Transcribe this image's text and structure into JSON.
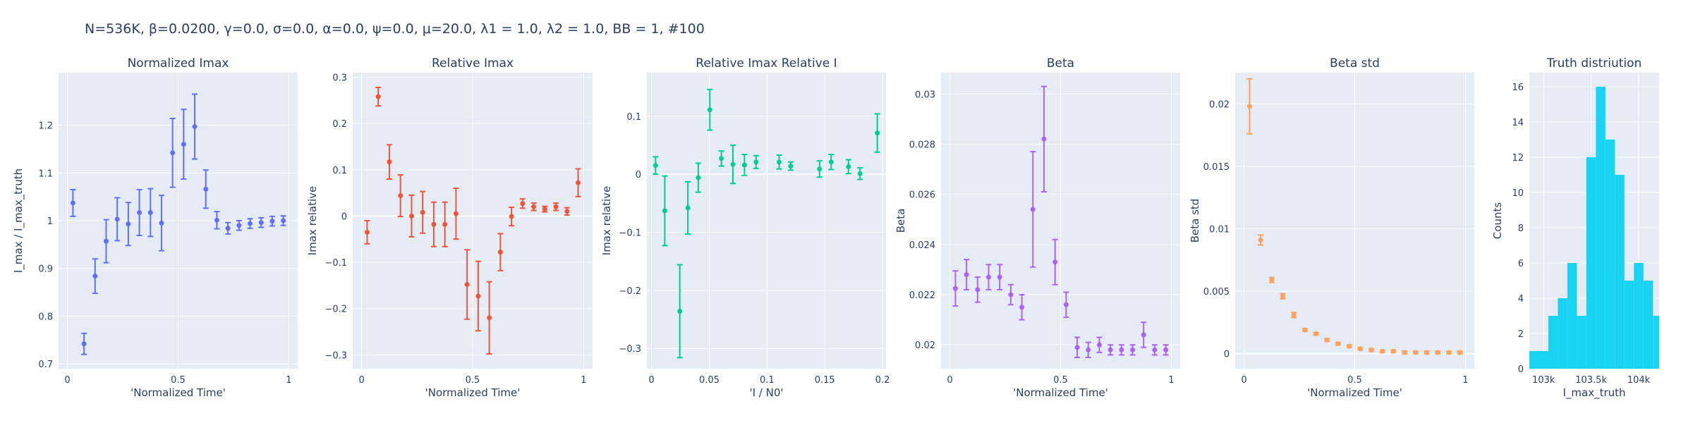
{
  "figure_title": "N=536K, β=0.0200, γ=0.0, σ=0.0,  α=0.0, ψ=0.0, μ=20.0, λ1 = 1.0, λ2 = 1.0, BB = 1, #100",
  "colors": {
    "plot_bg": "#E5ECF6",
    "grid": "#ffffff",
    "text": "#2a3f5f",
    "blue": "#636EFA",
    "red": "#EF553B",
    "green": "#00CC96",
    "purple": "#AB63FA",
    "orange": "#FFA15A",
    "cyan": "#19D3F3"
  },
  "chart_data": [
    {
      "type": "scatter",
      "title": "Normalized Imax",
      "xlabel": "'Normalized Time'",
      "ylabel": "I_max / I_max_truth",
      "xlim": [
        -0.04,
        1.04
      ],
      "ylim": [
        0.69,
        1.31
      ],
      "xticks": [
        0,
        0.5,
        1
      ],
      "xtick_labels": [
        "0",
        "0.5",
        "1"
      ],
      "yticks": [
        0.7,
        0.8,
        0.9,
        1,
        1.1,
        1.2
      ],
      "ytick_labels": [
        "0.7",
        "0.8",
        "0.9",
        "1",
        "1.1",
        "1.2"
      ],
      "color": "#636EFA",
      "x": [
        0.025,
        0.075,
        0.125,
        0.175,
        0.225,
        0.275,
        0.325,
        0.375,
        0.425,
        0.475,
        0.525,
        0.575,
        0.625,
        0.675,
        0.725,
        0.775,
        0.825,
        0.875,
        0.925,
        0.975
      ],
      "y": [
        1.037,
        0.742,
        0.884,
        0.957,
        1.003,
        0.993,
        1.017,
        1.017,
        0.995,
        1.142,
        1.16,
        1.197,
        1.066,
        1.001,
        0.984,
        0.99,
        0.994,
        0.996,
        0.999,
        1.0
      ],
      "err": [
        0.028,
        0.022,
        0.036,
        0.045,
        0.045,
        0.045,
        0.048,
        0.05,
        0.058,
        0.072,
        0.073,
        0.068,
        0.04,
        0.018,
        0.012,
        0.01,
        0.01,
        0.01,
        0.01,
        0.01
      ]
    },
    {
      "type": "scatter",
      "title": "Relative Imax",
      "xlabel": "'Normalized Time'",
      "ylabel": "Imax relative",
      "xlim": [
        -0.04,
        1.04
      ],
      "ylim": [
        -0.33,
        0.31
      ],
      "xticks": [
        0,
        0.5,
        1
      ],
      "xtick_labels": [
        "0",
        "0.5",
        "1"
      ],
      "yticks": [
        -0.3,
        -0.2,
        -0.1,
        0,
        0.1,
        0.2,
        0.3
      ],
      "ytick_labels": [
        "−0.3",
        "−0.2",
        "−0.1",
        "0",
        "0.1",
        "0.2",
        "0.3"
      ],
      "color": "#EF553B",
      "x": [
        0.025,
        0.075,
        0.125,
        0.175,
        0.225,
        0.275,
        0.325,
        0.375,
        0.425,
        0.475,
        0.525,
        0.575,
        0.625,
        0.675,
        0.725,
        0.775,
        0.825,
        0.875,
        0.925,
        0.975
      ],
      "y": [
        -0.035,
        0.258,
        0.117,
        0.044,
        0.0,
        0.008,
        -0.018,
        -0.018,
        0.005,
        -0.148,
        -0.173,
        -0.22,
        -0.078,
        -0.001,
        0.027,
        0.02,
        0.015,
        0.02,
        0.01,
        0.072
      ],
      "err": [
        0.025,
        0.02,
        0.037,
        0.045,
        0.045,
        0.045,
        0.048,
        0.048,
        0.055,
        0.075,
        0.075,
        0.078,
        0.04,
        0.02,
        0.01,
        0.008,
        0.006,
        0.008,
        0.008,
        0.03
      ]
    },
    {
      "type": "scatter",
      "title": "Relative Imax Relative I",
      "xlabel": "'I / N0'",
      "ylabel": "Imax relative",
      "xlim": [
        -0.004,
        0.203
      ],
      "ylim": [
        -0.335,
        0.175
      ],
      "xticks": [
        0,
        0.05,
        0.1,
        0.15,
        0.2
      ],
      "xtick_labels": [
        "0",
        "0.05",
        "0.1",
        "0.15",
        "0.2"
      ],
      "yticks": [
        -0.3,
        -0.2,
        -0.1,
        0,
        0.1
      ],
      "ytick_labels": [
        "−0.3",
        "−0.2",
        "−0.1",
        "0",
        "0.1"
      ],
      "color": "#00CC96",
      "x": [
        0.0035,
        0.0115,
        0.0245,
        0.0315,
        0.0405,
        0.0505,
        0.0605,
        0.0705,
        0.0805,
        0.0905,
        0.1105,
        0.1205,
        0.1455,
        0.1555,
        0.1705,
        0.1805,
        0.1955
      ],
      "y": [
        0.015,
        -0.063,
        -0.236,
        -0.058,
        -0.006,
        0.111,
        0.027,
        0.017,
        0.016,
        0.021,
        0.021,
        0.014,
        0.009,
        0.021,
        0.013,
        0.001,
        0.071
      ],
      "err": [
        0.015,
        0.06,
        0.08,
        0.045,
        0.025,
        0.035,
        0.013,
        0.033,
        0.018,
        0.011,
        0.012,
        0.007,
        0.014,
        0.013,
        0.012,
        0.01,
        0.033
      ]
    },
    {
      "type": "scatter",
      "title": "Beta",
      "xlabel": "'Normalized Time'",
      "ylabel": "Beta",
      "xlim": [
        -0.04,
        1.04
      ],
      "ylim": [
        0.01905,
        0.03085
      ],
      "xticks": [
        0,
        0.5,
        1
      ],
      "xtick_labels": [
        "0",
        "0.5",
        "1"
      ],
      "yticks": [
        0.02,
        0.022,
        0.024,
        0.026,
        0.028,
        0.03
      ],
      "ytick_labels": [
        "0.02",
        "0.022",
        "0.024",
        "0.026",
        "0.028",
        "0.03"
      ],
      "color": "#AB63FA",
      "x": [
        0.025,
        0.075,
        0.125,
        0.175,
        0.225,
        0.275,
        0.325,
        0.375,
        0.425,
        0.475,
        0.525,
        0.575,
        0.625,
        0.675,
        0.725,
        0.775,
        0.825,
        0.875,
        0.925,
        0.975
      ],
      "y": [
        0.02225,
        0.0228,
        0.0222,
        0.0227,
        0.0227,
        0.022,
        0.0215,
        0.0254,
        0.0282,
        0.0233,
        0.0216,
        0.0199,
        0.0198,
        0.02,
        0.0198,
        0.0198,
        0.0198,
        0.0204,
        0.0198,
        0.0198
      ],
      "err": [
        0.0007,
        0.0006,
        0.0005,
        0.0005,
        0.0005,
        0.0004,
        0.0005,
        0.0023,
        0.0021,
        0.0009,
        0.0005,
        0.0004,
        0.0003,
        0.0003,
        0.0002,
        0.0002,
        0.0002,
        0.0005,
        0.0002,
        0.0002
      ]
    },
    {
      "type": "scatter",
      "title": "Beta std",
      "xlabel": "'Normalized Time'",
      "ylabel": "Beta std",
      "xlim": [
        -0.04,
        1.04
      ],
      "ylim": [
        -0.0012,
        0.0225
      ],
      "xticks": [
        0,
        0.5,
        1
      ],
      "xtick_labels": [
        "0",
        "0.5",
        "1"
      ],
      "yticks": [
        0,
        0.005,
        0.01,
        0.015,
        0.02
      ],
      "ytick_labels": [
        "0",
        "0.005",
        "0.01",
        "0.015",
        "0.02"
      ],
      "color": "#FFA15A",
      "x": [
        0.025,
        0.075,
        0.125,
        0.175,
        0.225,
        0.275,
        0.325,
        0.375,
        0.425,
        0.475,
        0.525,
        0.575,
        0.625,
        0.675,
        0.725,
        0.775,
        0.825,
        0.875,
        0.925,
        0.975
      ],
      "y": [
        0.0198,
        0.0091,
        0.0059,
        0.0046,
        0.0031,
        0.0019,
        0.0016,
        0.0011,
        0.0008,
        0.0006,
        0.0004,
        0.0003,
        0.0002,
        0.0002,
        0.0001,
        0.0001,
        0.0001,
        0.0001,
        0.0001,
        0.0001
      ],
      "err": [
        0.0022,
        0.0004,
        0.0002,
        0.0002,
        0.0002,
        0.0001,
        0.0001,
        0.0001,
        0.0001,
        0.0001,
        0.0001,
        0.0001,
        0.0001,
        0.0001,
        0.0001,
        0.0001,
        0.0001,
        0.0001,
        0.0001,
        0.0001
      ]
    },
    {
      "type": "bar",
      "title": "Truth distriution",
      "xlabel": "I_max_truth",
      "ylabel": "Counts",
      "xlim": [
        102850,
        104215
      ],
      "ylim": [
        0,
        16.8
      ],
      "xticks": [
        103000,
        103500,
        104000
      ],
      "xtick_labels": [
        "103k",
        "103.5k",
        "104k"
      ],
      "yticks": [
        0,
        2,
        4,
        6,
        8,
        10,
        12,
        14,
        16
      ],
      "ytick_labels": [
        "0",
        "2",
        "4",
        "6",
        "8",
        "10",
        "12",
        "14",
        "16"
      ],
      "color": "#19D3F3",
      "bin_edges": [
        102850,
        103050,
        103150,
        103250,
        103350,
        103450,
        103550,
        103650,
        103750,
        103850,
        103950,
        104050,
        104150,
        104215
      ],
      "counts": [
        1,
        3,
        4,
        6,
        3,
        12,
        16,
        13,
        11,
        5,
        6,
        5,
        3
      ]
    }
  ]
}
